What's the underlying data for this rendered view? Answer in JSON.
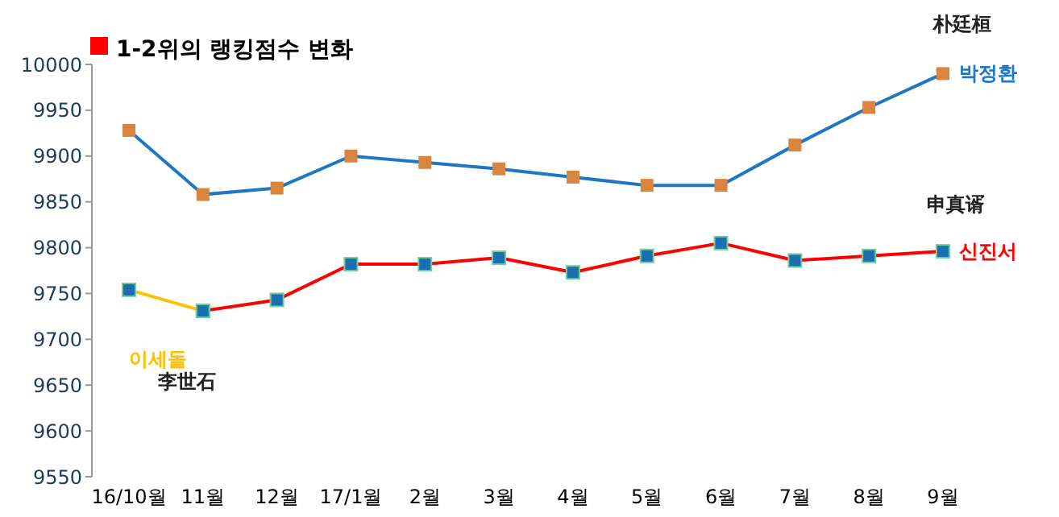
{
  "chart_data": {
    "type": "line",
    "title": "1-2위의 랭킹점수 변화",
    "categories": [
      "16/10월",
      "11월",
      "12월",
      "17/1월",
      "2월",
      "3월",
      "4월",
      "5월",
      "6월",
      "7월",
      "8월",
      "9월"
    ],
    "series": [
      {
        "name": "박정환",
        "color": "#1f77c4",
        "colors": [
          "#d9843f",
          "#d9843f",
          "#d9843f",
          "#d9843f",
          "#d9843f",
          "#d9843f",
          "#d9843f",
          "#d9843f",
          "#d9843f",
          "#d9843f",
          "#d9843f",
          "#d9843f"
        ],
        "values": [
          9928,
          9858,
          9865,
          9900,
          9893,
          9886,
          9877,
          9868,
          9868,
          9912,
          9953,
          9990
        ]
      },
      {
        "name": "이세돌",
        "color": "#ffc000",
        "colors": [
          "#1a6fb0",
          "#1a6fb0",
          null,
          null,
          null,
          null,
          null,
          null,
          null,
          null,
          null,
          null
        ],
        "values": [
          9754,
          9731,
          null,
          null,
          null,
          null,
          null,
          null,
          null,
          null,
          null,
          null
        ]
      },
      {
        "name": "신진서",
        "color": "#ff0000",
        "colors": [
          null,
          "#1a6fb0",
          "#1a6fb0",
          "#1a6fb0",
          "#1a6fb0",
          "#1a6fb0",
          "#1a6fb0",
          "#1a6fb0",
          "#1a6fb0",
          "#1a6fb0",
          "#1a6fb0",
          "#1a6fb0"
        ],
        "values": [
          null,
          9731,
          9743,
          9782,
          9782,
          9789,
          9773,
          9791,
          9805,
          9786,
          9791,
          9796
        ]
      }
    ],
    "annotations": [
      "朴廷桓",
      "申真谞",
      "李世石"
    ],
    "ylim": [
      9550,
      10000
    ],
    "yticks": [
      9550,
      9600,
      9650,
      9700,
      9750,
      9800,
      9850,
      9900,
      9950,
      10000
    ],
    "marker": "square",
    "line_style": "solid",
    "grid": false,
    "legend": false
  }
}
